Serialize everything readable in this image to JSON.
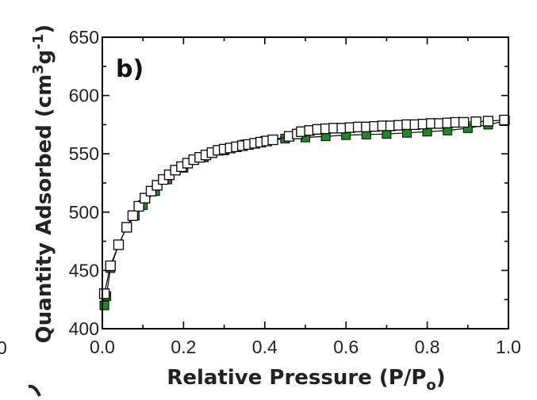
{
  "panel_label": "b)",
  "side_fragment": "0",
  "chart_data": {
    "type": "scatter",
    "xlabel": "Relative Pressure (P/P",
    "xlabel_sub": "o",
    "xlabel_end": ")",
    "ylabel": "Quantity Adsorbed (cm",
    "ylabel_sup1": "3",
    "ylabel_mid": "g",
    "ylabel_sup2": "-1",
    "ylabel_end": ")",
    "xlim": [
      0.0,
      1.0
    ],
    "ylim": [
      400,
      650
    ],
    "x_ticks": [
      "0.0",
      "0.2",
      "0.4",
      "0.6",
      "0.8",
      "1.0"
    ],
    "y_ticks": [
      "400",
      "450",
      "500",
      "550",
      "600",
      "650"
    ],
    "grid": false,
    "series": [
      {
        "role": "adsorption",
        "color": "#1f8a1f",
        "marker": "filled-square",
        "x": [
          0.005,
          0.01,
          0.02,
          0.04,
          0.06,
          0.08,
          0.1,
          0.13,
          0.16,
          0.2,
          0.25,
          0.3,
          0.35,
          0.4,
          0.45,
          0.5,
          0.55,
          0.6,
          0.65,
          0.7,
          0.75,
          0.8,
          0.85,
          0.9,
          0.95,
          0.99
        ],
        "y": [
          420,
          428,
          452,
          472,
          487,
          497,
          506,
          518,
          528,
          538,
          547,
          553,
          558,
          561,
          563,
          564,
          565,
          566,
          566.5,
          567,
          568,
          569,
          570,
          572,
          575,
          578
        ]
      },
      {
        "role": "desorption",
        "color": "#ffffff",
        "marker": "open-square",
        "x": [
          0.005,
          0.02,
          0.04,
          0.06,
          0.075,
          0.09,
          0.105,
          0.12,
          0.135,
          0.15,
          0.165,
          0.18,
          0.195,
          0.21,
          0.225,
          0.24,
          0.255,
          0.27,
          0.285,
          0.3,
          0.315,
          0.33,
          0.345,
          0.36,
          0.375,
          0.39,
          0.405,
          0.42,
          0.46,
          0.48,
          0.49,
          0.51,
          0.53,
          0.55,
          0.57,
          0.59,
          0.61,
          0.63,
          0.65,
          0.67,
          0.69,
          0.71,
          0.73,
          0.75,
          0.77,
          0.79,
          0.81,
          0.83,
          0.85,
          0.87,
          0.89,
          0.92,
          0.95,
          0.99
        ],
        "y": [
          430,
          454,
          472,
          487,
          497,
          505,
          512,
          518,
          523,
          528,
          532,
          536,
          539,
          542,
          545,
          547,
          549,
          551,
          553,
          554,
          555,
          556,
          557,
          558,
          559,
          560,
          561,
          562,
          565,
          567,
          569,
          570,
          571,
          571.5,
          572,
          572,
          572.5,
          573,
          573,
          573.5,
          574,
          574,
          574.5,
          575,
          575,
          575.5,
          576,
          576,
          576.5,
          577,
          577,
          577.5,
          578,
          579
        ]
      }
    ]
  }
}
